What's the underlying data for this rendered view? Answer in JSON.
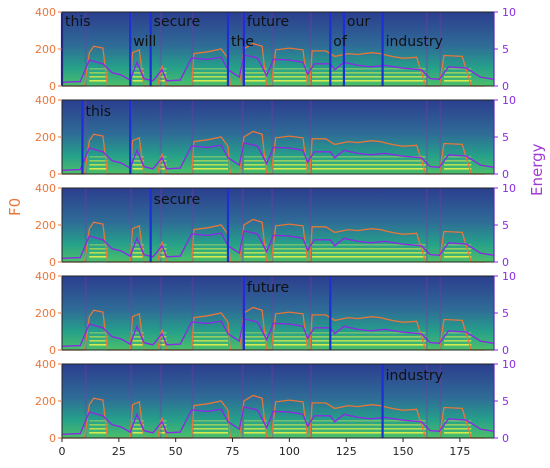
{
  "chart_data": {
    "type": "spectrogram",
    "colors": {
      "f0": "#e8753a",
      "energy": "#8a2be2",
      "boundary": "#1f2fd6",
      "spec_low": "#2c3e8f",
      "spec_mid": "#25a08a",
      "spec_high": "#e6f04a"
    },
    "xlabel": "",
    "ylabel_left": "F0",
    "ylabel_right": "Energy",
    "xlim": [
      0,
      190
    ],
    "xticks": [
      0,
      25,
      50,
      75,
      100,
      125,
      150,
      175
    ],
    "ylim_left": [
      0,
      400
    ],
    "yticks_left": [
      0,
      200,
      400
    ],
    "ylim_right": [
      0,
      10
    ],
    "yticks_right": [
      0,
      5,
      10
    ],
    "words": [
      {
        "text": "this",
        "start": 0,
        "end": 30
      },
      {
        "text": "will",
        "start": 30,
        "end": 39
      },
      {
        "text": "secure",
        "start": 39,
        "end": 73
      },
      {
        "text": "the",
        "start": 73,
        "end": 80
      },
      {
        "text": "future",
        "start": 80,
        "end": 118
      },
      {
        "text": "of",
        "start": 118,
        "end": 124
      },
      {
        "text": "our",
        "start": 124,
        "end": 141
      },
      {
        "text": "industry",
        "start": 141,
        "end": 190
      }
    ],
    "panels": [
      {
        "labels": [
          "this",
          "will",
          "secure",
          "the",
          "future",
          "of",
          "our",
          "industry"
        ],
        "boundaries": [
          0,
          30,
          39,
          73,
          80,
          118,
          124,
          141
        ]
      },
      {
        "labels": [
          "this"
        ],
        "boundaries": [
          9,
          30
        ]
      },
      {
        "labels": [
          "secure"
        ],
        "boundaries": [
          39,
          73
        ]
      },
      {
        "labels": [
          "future"
        ],
        "boundaries": [
          80,
          118
        ]
      },
      {
        "labels": [
          "industry"
        ],
        "boundaries": [
          141
        ]
      }
    ],
    "f0_contour": [
      [
        0,
        0
      ],
      [
        10,
        0
      ],
      [
        12,
        180
      ],
      [
        14,
        215
      ],
      [
        18,
        205
      ],
      [
        20,
        0
      ],
      [
        30,
        0
      ],
      [
        31,
        180
      ],
      [
        34,
        195
      ],
      [
        36,
        0
      ],
      [
        42,
        0
      ],
      [
        44,
        110
      ],
      [
        46,
        0
      ],
      [
        57,
        0
      ],
      [
        58,
        175
      ],
      [
        64,
        185
      ],
      [
        70,
        200
      ],
      [
        73,
        150
      ],
      [
        74,
        0
      ],
      [
        78,
        0
      ],
      [
        80,
        200
      ],
      [
        84,
        230
      ],
      [
        88,
        215
      ],
      [
        90,
        0
      ],
      [
        92,
        0
      ],
      [
        94,
        195
      ],
      [
        100,
        205
      ],
      [
        106,
        195
      ],
      [
        108,
        0
      ],
      [
        109,
        0
      ],
      [
        110,
        190
      ],
      [
        116,
        190
      ],
      [
        120,
        160
      ],
      [
        126,
        175
      ],
      [
        130,
        170
      ],
      [
        136,
        180
      ],
      [
        140,
        175
      ],
      [
        145,
        160
      ],
      [
        150,
        150
      ],
      [
        156,
        155
      ],
      [
        160,
        0
      ],
      [
        166,
        0
      ],
      [
        168,
        165
      ],
      [
        176,
        160
      ],
      [
        180,
        0
      ],
      [
        186,
        0
      ]
    ],
    "energy_contour": [
      [
        0,
        0.5
      ],
      [
        8,
        0.6
      ],
      [
        12,
        3.5
      ],
      [
        18,
        3.0
      ],
      [
        22,
        1.8
      ],
      [
        26,
        1.5
      ],
      [
        30,
        0.8
      ],
      [
        33,
        3.2
      ],
      [
        36,
        1.0
      ],
      [
        40,
        0.7
      ],
      [
        44,
        2.2
      ],
      [
        46,
        0.7
      ],
      [
        52,
        0.8
      ],
      [
        57,
        3.8
      ],
      [
        64,
        3.6
      ],
      [
        70,
        3.9
      ],
      [
        73,
        2.2
      ],
      [
        78,
        1.2
      ],
      [
        80,
        4.2
      ],
      [
        86,
        3.8
      ],
      [
        90,
        1.4
      ],
      [
        93,
        3.6
      ],
      [
        100,
        3.5
      ],
      [
        106,
        3.2
      ],
      [
        108,
        1.6
      ],
      [
        111,
        3.0
      ],
      [
        118,
        3.0
      ],
      [
        120,
        2.2
      ],
      [
        124,
        3.2
      ],
      [
        130,
        2.8
      ],
      [
        136,
        2.6
      ],
      [
        142,
        2.8
      ],
      [
        150,
        2.4
      ],
      [
        158,
        2.2
      ],
      [
        162,
        1.0
      ],
      [
        166,
        0.9
      ],
      [
        170,
        2.6
      ],
      [
        178,
        2.4
      ],
      [
        184,
        1.2
      ],
      [
        190,
        0.9
      ]
    ]
  }
}
